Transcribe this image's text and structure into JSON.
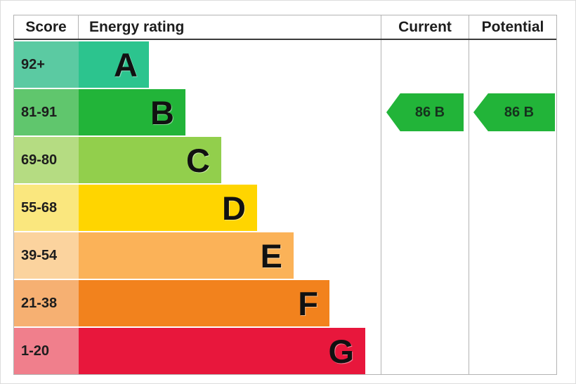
{
  "header": {
    "score": "Score",
    "energy_rating": "Energy rating",
    "current": "Current",
    "potential": "Potential"
  },
  "bands": [
    {
      "range": "92+",
      "letter": "A",
      "bar_color": "#2cc48e",
      "score_color": "#5bcaa2"
    },
    {
      "range": "81-91",
      "letter": "B",
      "bar_color": "#22b439",
      "score_color": "#60c66d"
    },
    {
      "range": "69-80",
      "letter": "C",
      "bar_color": "#92cf4c",
      "score_color": "#b5dc82"
    },
    {
      "range": "55-68",
      "letter": "D",
      "bar_color": "#ffd500",
      "score_color": "#fae77e"
    },
    {
      "range": "39-54",
      "letter": "E",
      "bar_color": "#fbb258",
      "score_color": "#fbd39e"
    },
    {
      "range": "21-38",
      "letter": "F",
      "bar_color": "#f2821d",
      "score_color": "#f6b072"
    },
    {
      "range": "1-20",
      "letter": "G",
      "bar_color": "#e8173c",
      "score_color": "#f07f8c"
    }
  ],
  "current": {
    "value": "86 B",
    "arrow_color": "#22b439"
  },
  "potential": {
    "value": "86 B",
    "arrow_color": "#22b439"
  },
  "chart_data": {
    "type": "bar",
    "orientation": "horizontal",
    "title": "Energy rating",
    "columns": [
      "Score",
      "Energy rating",
      "Current",
      "Potential"
    ],
    "categories": [
      "A",
      "B",
      "C",
      "D",
      "E",
      "F",
      "G"
    ],
    "score_ranges": [
      "92+",
      "81-91",
      "69-80",
      "55-68",
      "39-54",
      "21-38",
      "1-20"
    ],
    "bar_lengths_relative": [
      1,
      1.5,
      2,
      2.5,
      3,
      3.5,
      4
    ],
    "band_colors": [
      "#2cc48e",
      "#22b439",
      "#92cf4c",
      "#ffd500",
      "#fbb258",
      "#f2821d",
      "#e8173c"
    ],
    "score_cell_colors": [
      "#5bcaa2",
      "#60c66d",
      "#b5dc82",
      "#fae77e",
      "#fbd39e",
      "#f6b072",
      "#f07f8c"
    ],
    "current": {
      "score": 86,
      "band": "B",
      "arrow_color": "#22b439"
    },
    "potential": {
      "score": 86,
      "band": "B",
      "arrow_color": "#22b439"
    },
    "legend": false,
    "grid": false
  }
}
